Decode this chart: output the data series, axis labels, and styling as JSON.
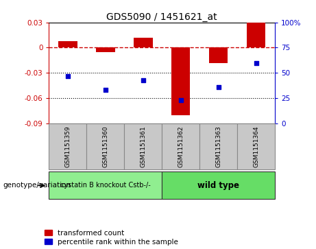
{
  "title": "GDS5090 / 1451621_at",
  "samples": [
    "GSM1151359",
    "GSM1151360",
    "GSM1151361",
    "GSM1151362",
    "GSM1151363",
    "GSM1151364"
  ],
  "red_values": [
    0.008,
    -0.005,
    0.012,
    -0.08,
    -0.018,
    0.03
  ],
  "blue_values_pct": [
    47,
    33,
    43,
    23,
    36,
    60
  ],
  "ylim_left": [
    -0.09,
    0.03
  ],
  "ylim_right": [
    0,
    100
  ],
  "yticks_left": [
    0.03,
    0,
    -0.03,
    -0.06,
    -0.09
  ],
  "yticks_right": [
    100,
    75,
    50,
    25,
    0
  ],
  "ytick_labels_left": [
    "0.03",
    "0",
    "-0.03",
    "-0.06",
    "-0.09"
  ],
  "ytick_labels_right": [
    "100%",
    "75",
    "50",
    "25",
    "0"
  ],
  "hlines": [
    0,
    -0.03,
    -0.06
  ],
  "hline_styles": [
    "dashed",
    "dotted",
    "dotted"
  ],
  "hline_colors": [
    "#cc0000",
    "#000000",
    "#000000"
  ],
  "bar_color": "#cc0000",
  "dot_color": "#0000cc",
  "group1_label": "cystatin B knockout Cstb-/-",
  "group2_label": "wild type",
  "group1_color": "#90ee90",
  "group2_color": "#66dd66",
  "genotype_label": "genotype/variation",
  "legend_bar_label": "transformed count",
  "legend_dot_label": "percentile rank within the sample",
  "bar_width": 0.5,
  "bg_color": "#ffffff",
  "plot_bg_color": "#ffffff",
  "sample_bg_color": "#c8c8c8"
}
